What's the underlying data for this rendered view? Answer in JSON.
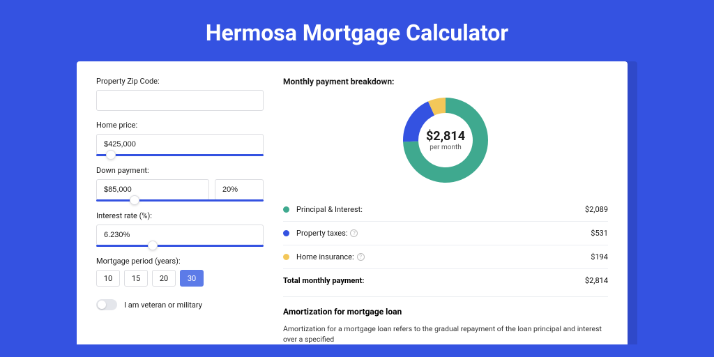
{
  "page": {
    "title": "Hermosa Mortgage Calculator",
    "background_color": "#3452e1",
    "accent_color": "#3452e1",
    "card_bg": "#ffffff"
  },
  "form": {
    "zip": {
      "label": "Property Zip Code:",
      "value": ""
    },
    "price": {
      "label": "Home price:",
      "value": "$425,000",
      "slider_pct": 6
    },
    "down": {
      "label": "Down payment:",
      "value": "$85,000",
      "pct_value": "20%",
      "slider_pct": 20
    },
    "rate": {
      "label": "Interest rate (%):",
      "value": "6.230%",
      "slider_pct": 31
    },
    "period": {
      "label": "Mortgage period (years):",
      "options": [
        "10",
        "15",
        "20",
        "30"
      ],
      "active_index": 3
    },
    "veteran": {
      "label": "I am veteran or military",
      "checked": false
    }
  },
  "breakdown": {
    "title": "Monthly payment breakdown:",
    "donut": {
      "amount": "$2,814",
      "sub": "per month",
      "series": [
        {
          "key": "pi",
          "label": "Principal & Interest:",
          "value_label": "$2,089",
          "value": 2089,
          "color": "#3fa98f",
          "has_info": false
        },
        {
          "key": "tax",
          "label": "Property taxes:",
          "value_label": "$531",
          "value": 531,
          "color": "#3452e1",
          "has_info": true
        },
        {
          "key": "ins",
          "label": "Home insurance:",
          "value_label": "$194",
          "value": 194,
          "color": "#f3c759",
          "has_info": true
        }
      ],
      "stroke_width": 22,
      "radius": 50,
      "bg_color": "#ffffff"
    },
    "total": {
      "label": "Total monthly payment:",
      "value_label": "$2,814"
    }
  },
  "amortization": {
    "title": "Amortization for mortgage loan",
    "text": "Amortization for a mortgage loan refers to the gradual repayment of the loan principal and interest over a specified"
  }
}
